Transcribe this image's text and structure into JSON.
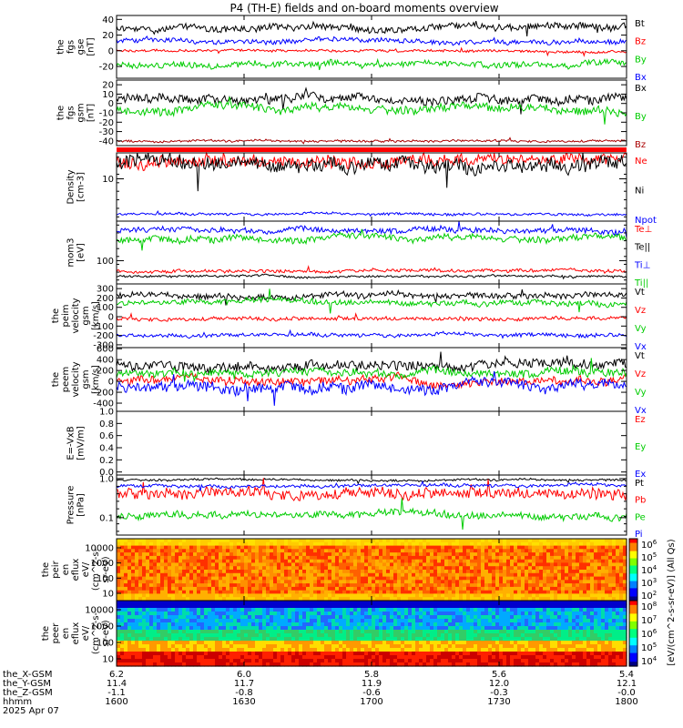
{
  "title": "P4 (TH-E) fields and on-board moments overview",
  "chart_data": [
    {
      "id": "fgs",
      "type": "line",
      "ylabel": [
        "the",
        "fgs",
        "gse",
        "[nT]"
      ],
      "ylim": [
        -35,
        45
      ],
      "yticks": [
        40,
        20,
        0,
        -20
      ],
      "series": [
        {
          "name": "Bt",
          "color": "#000000",
          "base": 30,
          "amp": 6
        },
        {
          "name": "Bz",
          "color": "#ff0000",
          "base": 0,
          "amp": 2
        },
        {
          "name": "By",
          "color": "#00cc00",
          "base": -17,
          "amp": 5
        },
        {
          "name": "Bx",
          "color": "#0000ff",
          "base": 12,
          "amp": 4
        }
      ]
    },
    {
      "id": "fgs_gsm",
      "type": "line",
      "ylabel": [
        "the",
        "fgs",
        "gsm",
        "[nT]"
      ],
      "ylim": [
        -45,
        25
      ],
      "yticks": [
        20,
        10,
        0,
        -10,
        -20,
        -30,
        -40
      ],
      "series": [
        {
          "name": "Bx",
          "color": "#000000",
          "base": 5,
          "amp": 6
        },
        {
          "name": "By",
          "color": "#00cc00",
          "base": -6,
          "amp": 6
        },
        {
          "name": "Bz",
          "color": "#aa0000",
          "base": -40,
          "amp": 1.5
        }
      ]
    },
    {
      "id": "density",
      "type": "line",
      "ylabel": [
        "Density",
        "[cm-3]"
      ],
      "yscale": "log",
      "yticks_labeled": [
        10
      ],
      "series": [
        {
          "name": "Ne",
          "color": "#ff0000"
        },
        {
          "name": "Ni",
          "color": "#000000"
        },
        {
          "name": "Npot",
          "color": "#0000ff"
        }
      ]
    },
    {
      "id": "temp",
      "type": "line",
      "ylabel": [
        "mom3",
        "[eV]"
      ],
      "yscale": "log",
      "yticks_labeled": [
        100
      ],
      "series": [
        {
          "name": "Te⊥",
          "color": "#ff0000"
        },
        {
          "name": "Te||",
          "color": "#000000"
        },
        {
          "name": "Ti⊥",
          "color": "#0000ff"
        },
        {
          "name": "Ti||",
          "color": "#00cc00"
        }
      ]
    },
    {
      "id": "peim",
      "type": "line",
      "ylabel": [
        "the",
        "peim",
        "velocity",
        "gsm",
        "[km/s]"
      ],
      "ylim": [
        -330,
        350
      ],
      "yticks": [
        300,
        200,
        100,
        0,
        -100,
        -200,
        -300
      ],
      "series": [
        {
          "name": "Vt",
          "color": "#000000",
          "base": 230,
          "amp": 40
        },
        {
          "name": "Vz",
          "color": "#ff0000",
          "base": -20,
          "amp": 25
        },
        {
          "name": "Vy",
          "color": "#00cc00",
          "base": 150,
          "amp": 40
        },
        {
          "name": "Vx",
          "color": "#0000ff",
          "base": -200,
          "amp": 25
        }
      ]
    },
    {
      "id": "peem",
      "type": "line",
      "ylabel": [
        "the",
        "peem",
        "velocity",
        "gsm",
        "[km/s]"
      ],
      "ylim": [
        -550,
        620
      ],
      "yticks": [
        600,
        400,
        200,
        0,
        -200,
        -400
      ],
      "series": [
        {
          "name": "Vt",
          "color": "#000000",
          "base": 280,
          "amp": 120
        },
        {
          "name": "Vz",
          "color": "#ff0000",
          "base": 0,
          "amp": 100
        },
        {
          "name": "Vy",
          "color": "#00cc00",
          "base": 150,
          "amp": 100
        },
        {
          "name": "Vx",
          "color": "#0000ff",
          "base": -100,
          "amp": 130
        }
      ]
    },
    {
      "id": "efield",
      "type": "line",
      "ylabel": [
        "E=-VxB",
        "[mV/m]"
      ],
      "ylim": [
        -0.05,
        1.0
      ],
      "yticks": [
        1.0,
        0.8,
        0.6,
        0.4,
        0.2,
        0.0
      ],
      "series": [
        {
          "name": "Ez",
          "color": "#ff0000"
        },
        {
          "name": "Ey",
          "color": "#00cc00"
        },
        {
          "name": "Ex",
          "color": "#0000ff"
        }
      ]
    },
    {
      "id": "pressure",
      "type": "line",
      "ylabel": [
        "Pressure",
        "[nPa]"
      ],
      "yscale": "log",
      "yticks_labeled": [
        1.0,
        0.1
      ],
      "series": [
        {
          "name": "Pt",
          "color": "#000000"
        },
        {
          "name": "Pb",
          "color": "#ff0000"
        },
        {
          "name": "Pe",
          "color": "#00cc00"
        },
        {
          "name": "Pi",
          "color": "#0000ff"
        }
      ]
    },
    {
      "id": "peir",
      "type": "heatmap",
      "ylabel": [
        "the",
        "peir",
        "en",
        "eflux",
        "eV/",
        "(cm^2-s-",
        "sr-eV)"
      ],
      "yscale": "log",
      "yticks": [
        10000,
        1000,
        100,
        10
      ],
      "ytick_labels": [
        "10000",
        "1000",
        "100",
        "10"
      ]
    },
    {
      "id": "peer",
      "type": "heatmap",
      "ylabel": [
        "the",
        "peer",
        "en",
        "eflux",
        "eV/",
        "(cm^2-s-",
        "sr-eV)"
      ],
      "yscale": "log",
      "yticks": [
        10000,
        1000,
        100,
        10
      ],
      "ytick_labels": [
        "10000",
        "1000",
        "100",
        "10"
      ]
    }
  ],
  "colorbar": {
    "label": "[eV/(cm^2-s-sr-eV)] (All Qs)",
    "ticks_top": [
      "10^6",
      "10^5",
      "10^4",
      "10^3",
      "10^2"
    ],
    "ticks_bottom": [
      "10^8",
      "10^7",
      "10^6",
      "10^5",
      "10^4"
    ]
  },
  "xaxis": {
    "row_labels": [
      "the_X-GSM",
      "the_Y-GSM",
      "the_Z-GSM",
      "hhmm",
      "2025 Apr 07"
    ],
    "columns": [
      {
        "x": "6.2",
        "y": "11.4",
        "z": "-1.1",
        "t": "1600"
      },
      {
        "x": "6.0",
        "y": "11.7",
        "z": "-0.8",
        "t": "1630"
      },
      {
        "x": "5.8",
        "y": "11.9",
        "z": "-0.6",
        "t": "1700"
      },
      {
        "x": "5.6",
        "y": "12.0",
        "z": "-0.3",
        "t": "1730"
      },
      {
        "x": "5.4",
        "y": "12.1",
        "z": "-0.0",
        "t": "1800"
      }
    ]
  }
}
